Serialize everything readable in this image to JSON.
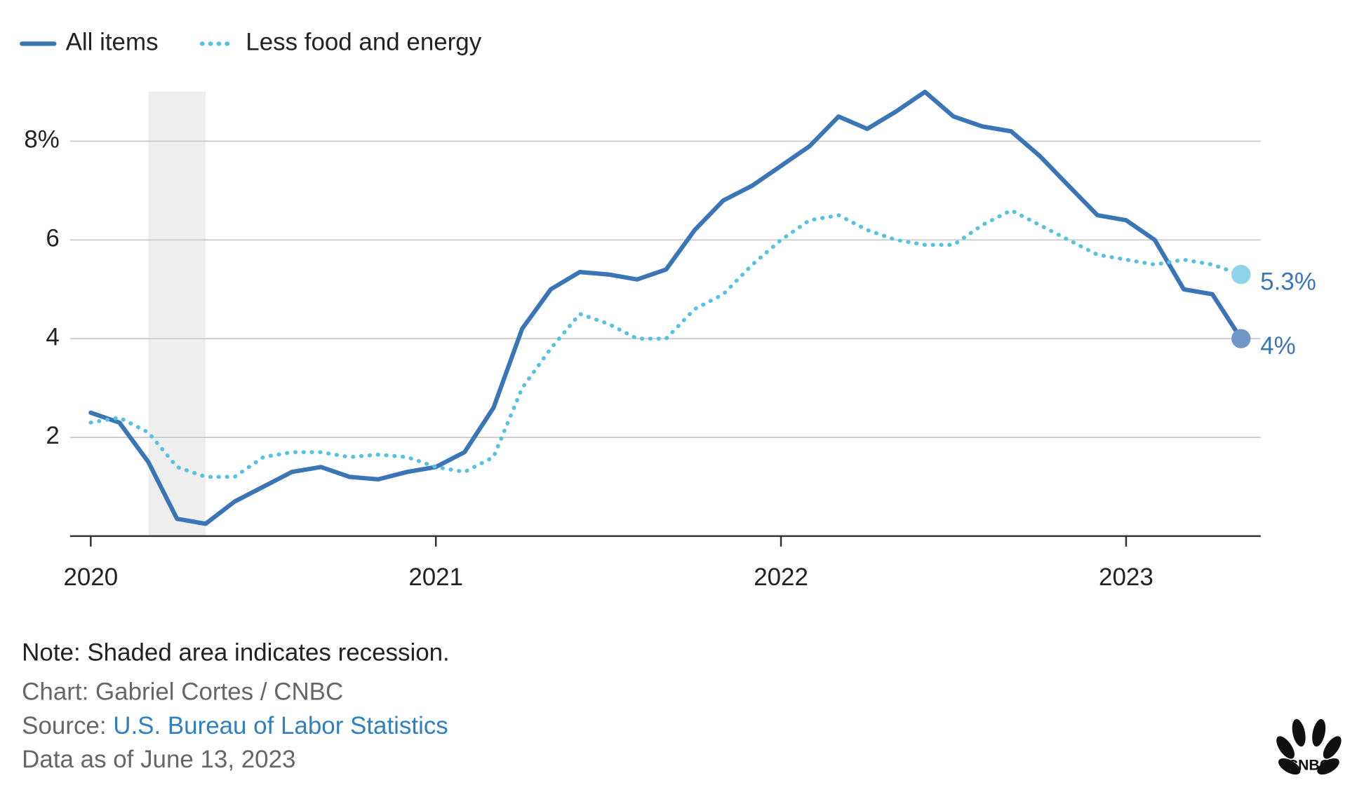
{
  "chart_data": {
    "type": "line",
    "x": [
      2020,
      2020.083,
      2020.167,
      2020.25,
      2020.333,
      2020.417,
      2020.5,
      2020.583,
      2020.667,
      2020.75,
      2020.833,
      2020.917,
      2021,
      2021.083,
      2021.167,
      2021.25,
      2021.333,
      2021.417,
      2021.5,
      2021.583,
      2021.667,
      2021.75,
      2021.833,
      2021.917,
      2022,
      2022.083,
      2022.167,
      2022.25,
      2022.333,
      2022.417,
      2022.5,
      2022.583,
      2022.667,
      2022.75,
      2022.833,
      2022.917,
      2023,
      2023.083,
      2023.167,
      2023.25,
      2023.333
    ],
    "series": [
      {
        "name": "All items",
        "color": "#3a76b5",
        "dashed": false,
        "end_label": "4%",
        "end_color": "#7097c8",
        "values": [
          2.5,
          2.3,
          1.5,
          0.35,
          0.25,
          0.7,
          1.0,
          1.3,
          1.4,
          1.2,
          1.15,
          1.3,
          1.4,
          1.7,
          2.6,
          4.2,
          5.0,
          5.35,
          5.3,
          5.2,
          5.4,
          6.2,
          6.8,
          7.1,
          7.5,
          7.9,
          8.5,
          8.25,
          8.6,
          9.0,
          8.5,
          8.3,
          8.2,
          7.7,
          7.1,
          6.5,
          6.4,
          6.0,
          5.0,
          4.9,
          4.0
        ]
      },
      {
        "name": "Less food and energy",
        "color": "#56c1e0",
        "dashed": true,
        "end_label": "5.3%",
        "end_color": "#8fd3ea",
        "values": [
          2.3,
          2.4,
          2.1,
          1.4,
          1.2,
          1.2,
          1.6,
          1.7,
          1.7,
          1.6,
          1.65,
          1.6,
          1.4,
          1.3,
          1.6,
          3.0,
          3.8,
          4.5,
          4.3,
          4.0,
          4.0,
          4.6,
          4.9,
          5.5,
          6.0,
          6.4,
          6.5,
          6.2,
          6.0,
          5.9,
          5.9,
          6.3,
          6.6,
          6.3,
          6.0,
          5.7,
          5.6,
          5.5,
          5.6,
          5.5,
          5.3
        ]
      }
    ],
    "recession": [
      2020.167,
      2020.333
    ],
    "xlim": [
      2019.94,
      2023.39
    ],
    "xticks": [
      2020,
      2021,
      2022,
      2023
    ],
    "ylim": [
      0,
      9.0
    ],
    "yticks": [
      2,
      4,
      6,
      {
        "value": 8,
        "label": "8%"
      }
    ],
    "grid": true,
    "note": "Note: Shaded area indicates recession.",
    "credit": "Chart: Gabriel Cortes / CNBC",
    "source_label": "Source:",
    "source": "U.S. Bureau of Labor Statistics",
    "data_date": "Data as of June 13, 2023",
    "logo": "CNBC"
  }
}
